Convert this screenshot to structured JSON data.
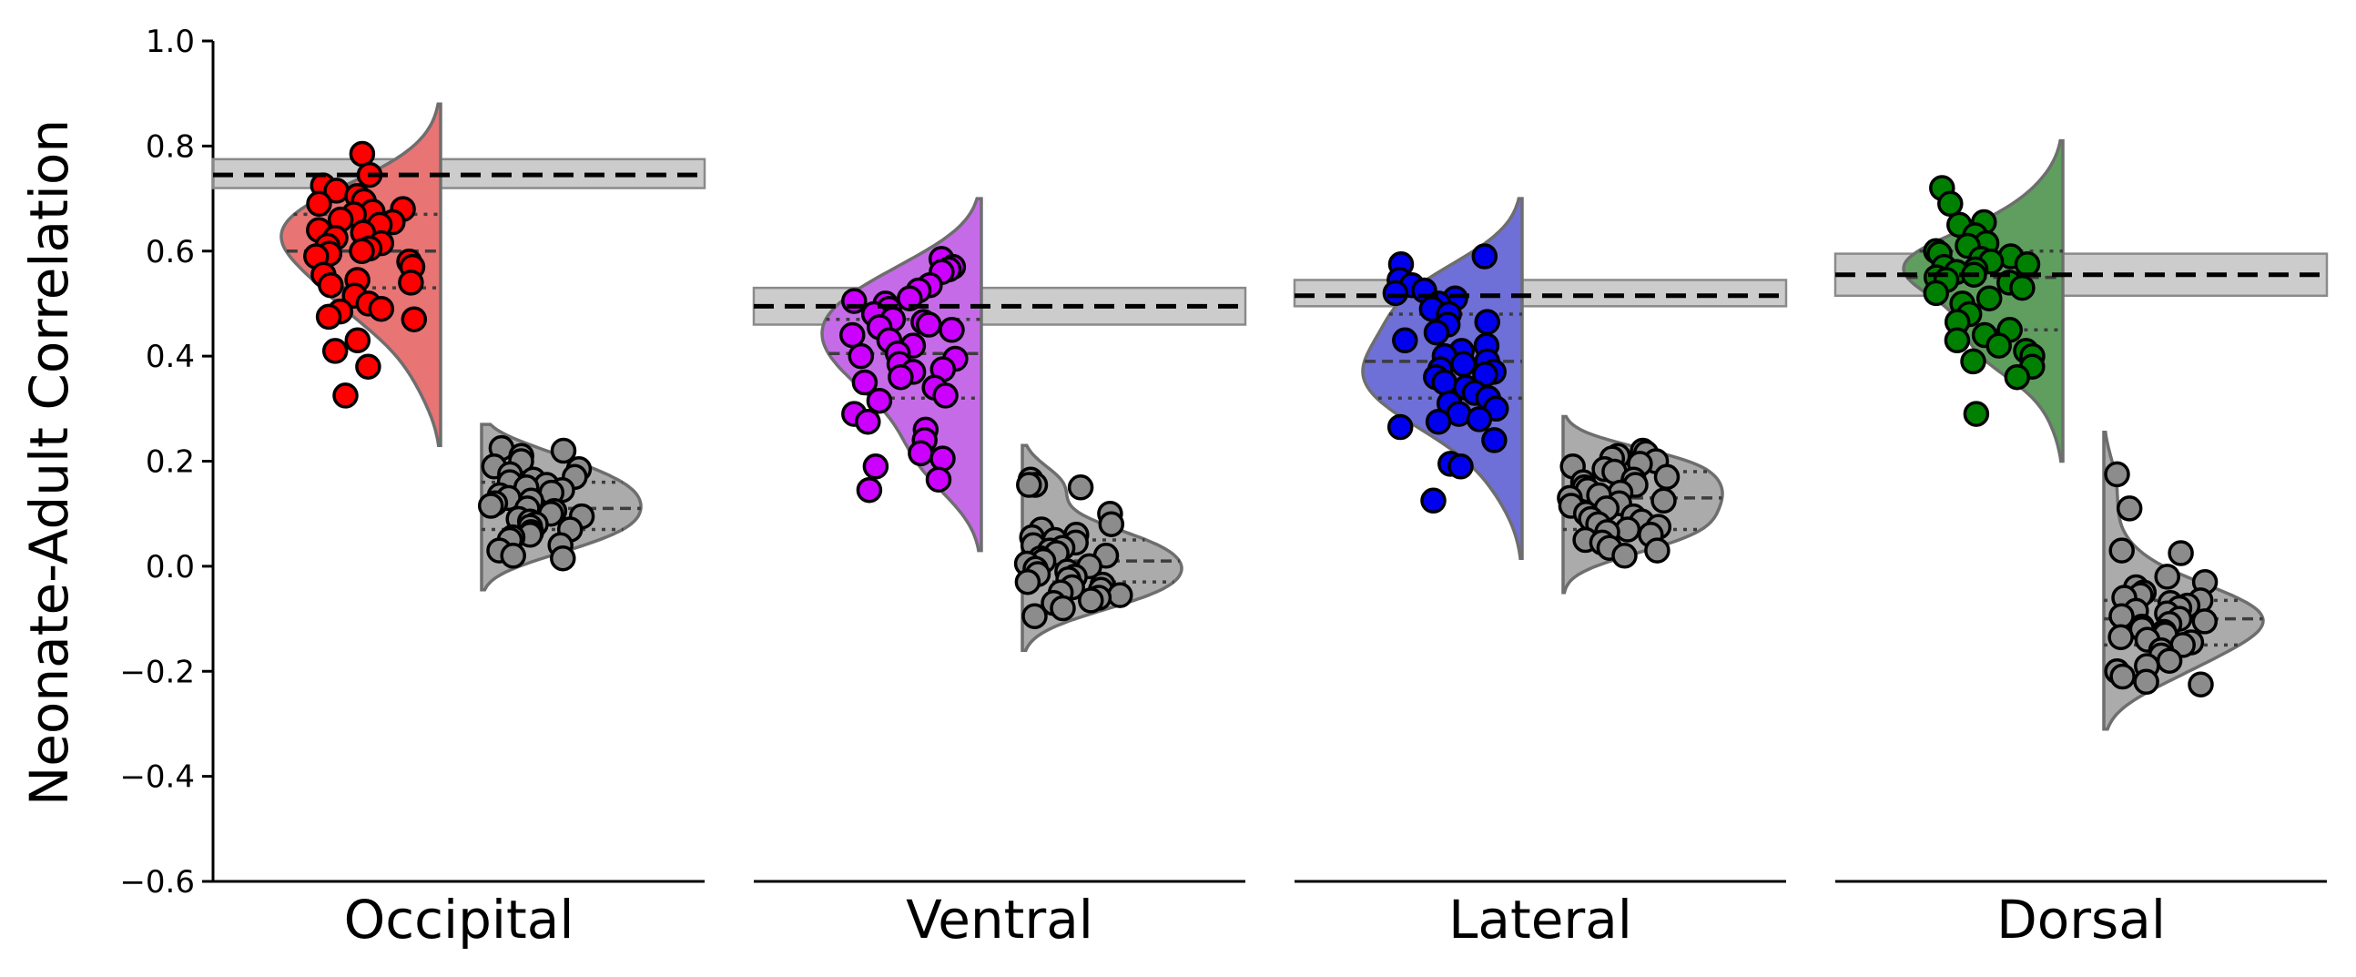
{
  "chart_data": {
    "type": "raincloud",
    "ylabel": "Neonate-Adult Correlation",
    "ylim": [
      -0.6,
      1.0
    ],
    "yticks": [
      1.0,
      0.8,
      0.6,
      0.4,
      0.2,
      0.0,
      -0.2,
      -0.4,
      -0.6
    ],
    "ytick_labels": [
      "1.0",
      "0.8",
      "0.6",
      "0.4",
      "0.2",
      "0.0",
      "−0.2",
      "−0.4",
      "−0.6"
    ],
    "grid": false,
    "panels": [
      {
        "category": "Occipital",
        "color": "#ff0000",
        "fill": "#e87474",
        "reference": {
          "value": 0.745,
          "band": [
            0.72,
            0.775
          ]
        },
        "observed": {
          "median": 0.6,
          "q1": 0.53,
          "q3": 0.67,
          "violin_range": [
            0.23,
            0.88
          ],
          "values": [
            0.785,
            0.745,
            0.725,
            0.715,
            0.705,
            0.695,
            0.69,
            0.68,
            0.675,
            0.67,
            0.66,
            0.655,
            0.65,
            0.64,
            0.635,
            0.625,
            0.615,
            0.61,
            0.605,
            0.6,
            0.595,
            0.59,
            0.58,
            0.57,
            0.555,
            0.545,
            0.54,
            0.535,
            0.515,
            0.5,
            0.49,
            0.485,
            0.475,
            0.47,
            0.43,
            0.41,
            0.38,
            0.325
          ]
        },
        "null": {
          "median": 0.11,
          "q1": 0.07,
          "q3": 0.16,
          "violin_range": [
            -0.045,
            0.27
          ],
          "values": [
            0.225,
            0.22,
            0.21,
            0.2,
            0.19,
            0.185,
            0.175,
            0.17,
            0.165,
            0.16,
            0.155,
            0.15,
            0.145,
            0.14,
            0.135,
            0.13,
            0.125,
            0.12,
            0.115,
            0.11,
            0.105,
            0.1,
            0.095,
            0.09,
            0.085,
            0.08,
            0.075,
            0.07,
            0.065,
            0.06,
            0.055,
            0.05,
            0.04,
            0.03,
            0.02,
            0.015
          ]
        }
      },
      {
        "category": "Ventral",
        "color": "#cc00ff",
        "fill": "#c66be8",
        "reference": {
          "value": 0.495,
          "band": [
            0.46,
            0.53
          ]
        },
        "observed": {
          "median": 0.405,
          "q1": 0.32,
          "q3": 0.47,
          "violin_range": [
            0.03,
            0.7
          ],
          "values": [
            0.585,
            0.57,
            0.565,
            0.56,
            0.535,
            0.525,
            0.51,
            0.505,
            0.5,
            0.49,
            0.48,
            0.47,
            0.465,
            0.46,
            0.455,
            0.45,
            0.44,
            0.43,
            0.42,
            0.405,
            0.4,
            0.395,
            0.385,
            0.375,
            0.37,
            0.36,
            0.35,
            0.34,
            0.325,
            0.315,
            0.29,
            0.275,
            0.26,
            0.24,
            0.215,
            0.205,
            0.19,
            0.165,
            0.145
          ]
        },
        "null": {
          "median": 0.01,
          "q1": -0.03,
          "q3": 0.05,
          "violin_range": [
            -0.16,
            0.23
          ],
          "values": [
            0.165,
            0.155,
            0.155,
            0.15,
            0.1,
            0.08,
            0.07,
            0.06,
            0.055,
            0.05,
            0.045,
            0.04,
            0.035,
            0.03,
            0.025,
            0.02,
            0.015,
            0.01,
            0.005,
            0.0,
            -0.005,
            -0.01,
            -0.015,
            -0.02,
            -0.025,
            -0.03,
            -0.035,
            -0.04,
            -0.045,
            -0.05,
            -0.055,
            -0.06,
            -0.065,
            -0.07,
            -0.08,
            -0.095
          ]
        }
      },
      {
        "category": "Lateral",
        "color": "#0000ee",
        "fill": "#6f6fd8",
        "reference": {
          "value": 0.515,
          "band": [
            0.495,
            0.545
          ]
        },
        "observed": {
          "median": 0.39,
          "q1": 0.32,
          "q3": 0.48,
          "violin_range": [
            0.015,
            0.7
          ],
          "values": [
            0.59,
            0.575,
            0.545,
            0.535,
            0.525,
            0.52,
            0.51,
            0.5,
            0.49,
            0.48,
            0.465,
            0.46,
            0.445,
            0.43,
            0.42,
            0.41,
            0.4,
            0.39,
            0.385,
            0.375,
            0.37,
            0.365,
            0.36,
            0.35,
            0.34,
            0.33,
            0.32,
            0.31,
            0.3,
            0.29,
            0.28,
            0.275,
            0.265,
            0.24,
            0.195,
            0.19,
            0.125
          ]
        },
        "null": {
          "median": 0.13,
          "q1": 0.07,
          "q3": 0.18,
          "violin_range": [
            -0.05,
            0.285
          ],
          "values": [
            0.22,
            0.215,
            0.21,
            0.205,
            0.2,
            0.195,
            0.19,
            0.185,
            0.18,
            0.17,
            0.165,
            0.16,
            0.155,
            0.15,
            0.145,
            0.14,
            0.135,
            0.13,
            0.125,
            0.12,
            0.115,
            0.11,
            0.1,
            0.095,
            0.09,
            0.085,
            0.08,
            0.075,
            0.07,
            0.065,
            0.06,
            0.05,
            0.045,
            0.035,
            0.03,
            0.02
          ]
        }
      },
      {
        "category": "Dorsal",
        "color": "#008000",
        "fill": "#5f9e5f",
        "reference": {
          "value": 0.555,
          "band": [
            0.515,
            0.595
          ]
        },
        "observed": {
          "median": 0.55,
          "q1": 0.45,
          "q3": 0.6,
          "violin_range": [
            0.2,
            0.81
          ],
          "values": [
            0.72,
            0.69,
            0.655,
            0.65,
            0.63,
            0.615,
            0.61,
            0.6,
            0.595,
            0.59,
            0.585,
            0.58,
            0.575,
            0.57,
            0.565,
            0.56,
            0.555,
            0.55,
            0.545,
            0.54,
            0.53,
            0.52,
            0.51,
            0.5,
            0.48,
            0.465,
            0.45,
            0.44,
            0.43,
            0.42,
            0.41,
            0.4,
            0.39,
            0.38,
            0.36,
            0.29
          ]
        },
        "null": {
          "median": -0.1,
          "q1": -0.15,
          "q3": -0.065,
          "violin_range": [
            -0.31,
            0.255
          ],
          "values": [
            0.175,
            0.11,
            0.03,
            0.025,
            -0.02,
            -0.03,
            -0.04,
            -0.05,
            -0.055,
            -0.06,
            -0.065,
            -0.07,
            -0.075,
            -0.08,
            -0.085,
            -0.09,
            -0.095,
            -0.1,
            -0.105,
            -0.11,
            -0.115,
            -0.12,
            -0.125,
            -0.13,
            -0.135,
            -0.14,
            -0.145,
            -0.15,
            -0.16,
            -0.17,
            -0.18,
            -0.19,
            -0.2,
            -0.21,
            -0.22,
            -0.225
          ]
        }
      }
    ]
  }
}
